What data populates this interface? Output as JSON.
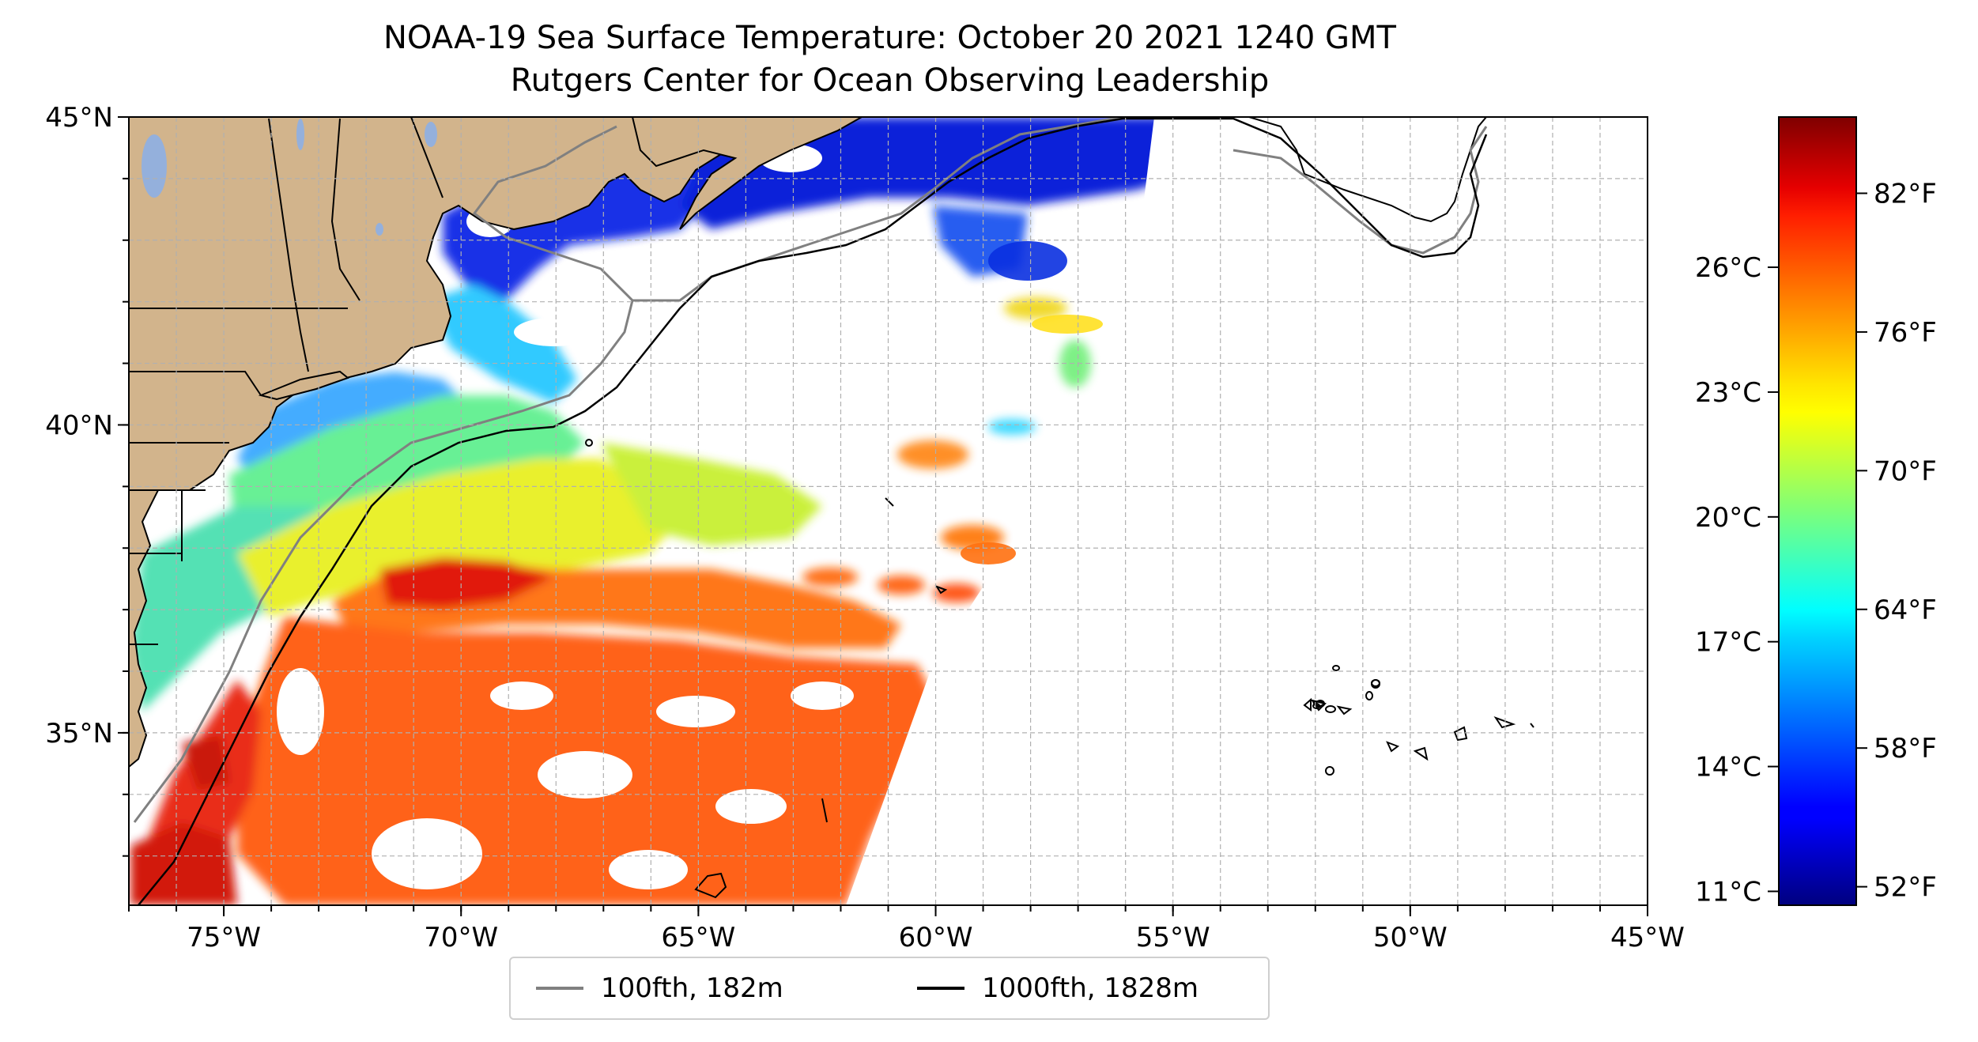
{
  "title_line1": "NOAA-19 Sea Surface Temperature: October 20 2021 1240 GMT",
  "title_line2": "Rutgers Center for Ocean Observing Leadership",
  "map": {
    "lon_range": [
      -77,
      -45
    ],
    "lat_range": [
      32.2,
      45
    ],
    "land_color": "#d2b48c",
    "ocean_color": "#ffffff",
    "lat_tick_labels": [
      {
        "value": 45,
        "label": "45°N"
      },
      {
        "value": 40,
        "label": "40°N"
      },
      {
        "value": 35,
        "label": "35°N"
      }
    ],
    "lon_tick_labels": [
      {
        "value": -75,
        "label": "75°W"
      },
      {
        "value": -70,
        "label": "70°W"
      },
      {
        "value": -65,
        "label": "65°W"
      },
      {
        "value": -60,
        "label": "60°W"
      },
      {
        "value": -55,
        "label": "55°W"
      },
      {
        "value": -50,
        "label": "50°W"
      },
      {
        "value": -45,
        "label": "45°W"
      }
    ],
    "gridlines": "dashed, 1 degree"
  },
  "legend": {
    "items": [
      {
        "label": "100fth, 182m",
        "color": "#808080"
      },
      {
        "label": "1000fth, 1828m",
        "color": "#000000"
      }
    ]
  },
  "colorbar": {
    "colormap": "jet",
    "range_f": [
      51.2,
      85.3
    ],
    "celsius_ticks": [
      {
        "value": 11,
        "label": "11°C"
      },
      {
        "value": 14,
        "label": "14°C"
      },
      {
        "value": 17,
        "label": "17°C"
      },
      {
        "value": 20,
        "label": "20°C"
      },
      {
        "value": 23,
        "label": "23°C"
      },
      {
        "value": 26,
        "label": "26°C"
      }
    ],
    "fahrenheit_ticks": [
      {
        "value": 52,
        "label": "52°F"
      },
      {
        "value": 58,
        "label": "58°F"
      },
      {
        "value": 64,
        "label": "64°F"
      },
      {
        "value": 70,
        "label": "70°F"
      },
      {
        "value": 76,
        "label": "76°F"
      },
      {
        "value": 82,
        "label": "82°F"
      }
    ]
  }
}
